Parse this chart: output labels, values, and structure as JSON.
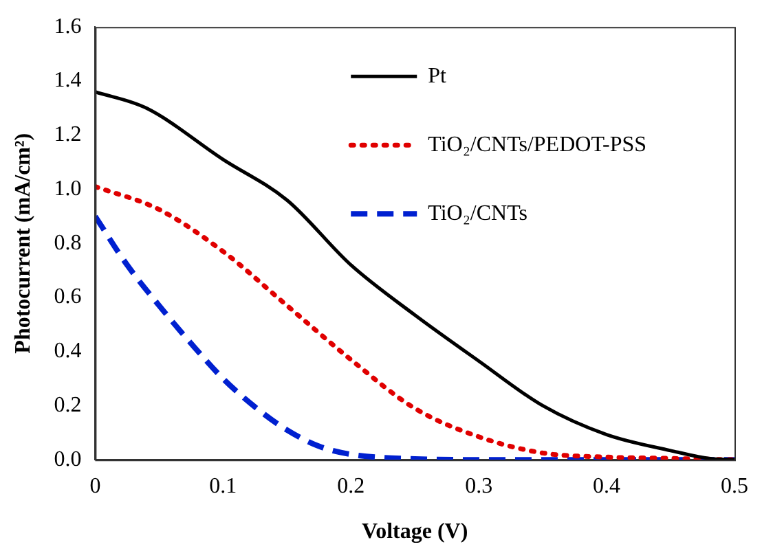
{
  "chart_data": {
    "type": "line",
    "xlabel": "Voltage (V)",
    "ylabel": "Photocurrent (mA/cm²)",
    "xlim": [
      0,
      0.5
    ],
    "xticks": [
      0,
      0.1,
      0.2,
      0.3,
      0.4,
      0.5
    ],
    "ylim": [
      0,
      1.6
    ],
    "yticks": [
      {
        "value": 0,
        "label": "0.0"
      },
      {
        "value": 0.2,
        "label": "0.2"
      },
      {
        "value": 0.4,
        "label": "0.4"
      },
      {
        "value": 0.6,
        "label": "0.6"
      },
      {
        "value": 0.8,
        "label": "0.8"
      },
      {
        "value": 1,
        "label": "1.0"
      },
      {
        "value": 1.2,
        "label": "1.2"
      },
      {
        "value": 1.4,
        "label": "1.4"
      },
      {
        "value": 1.6,
        "label": "1.6"
      }
    ],
    "grid": false,
    "legend": "top right",
    "marker": "none",
    "series": [
      {
        "name": "Pt",
        "color": "#000000",
        "line_style": "solid",
        "x": [
          0,
          0.04,
          0.1,
          0.15,
          0.2,
          0.25,
          0.3,
          0.35,
          0.4,
          0.45,
          0.48,
          0.5
        ],
        "values": [
          1.36,
          1.3,
          1.11,
          0.96,
          0.72,
          0.535,
          0.365,
          0.2,
          0.093,
          0.034,
          0.005,
          0
        ]
      },
      {
        "name": "TiO₂/CNTs/PEDOT-PSS",
        "color": "#e00000",
        "line_style": "dotted",
        "x": [
          0,
          0.05,
          0.1,
          0.15,
          0.2,
          0.25,
          0.3,
          0.35,
          0.4,
          0.45,
          0.5
        ],
        "values": [
          1.01,
          0.925,
          0.77,
          0.57,
          0.37,
          0.19,
          0.085,
          0.025,
          0.01,
          0.005,
          0
        ]
      },
      {
        "name": "TiO₂/CNTs",
        "color": "#0020d0",
        "line_style": "dashed",
        "x": [
          0,
          0.025,
          0.05,
          0.075,
          0.1,
          0.125,
          0.15,
          0.175,
          0.2,
          0.25,
          0.3,
          0.5
        ],
        "values": [
          0.9,
          0.72,
          0.57,
          0.43,
          0.3,
          0.195,
          0.11,
          0.05,
          0.02,
          0.003,
          0,
          0
        ]
      }
    ]
  }
}
